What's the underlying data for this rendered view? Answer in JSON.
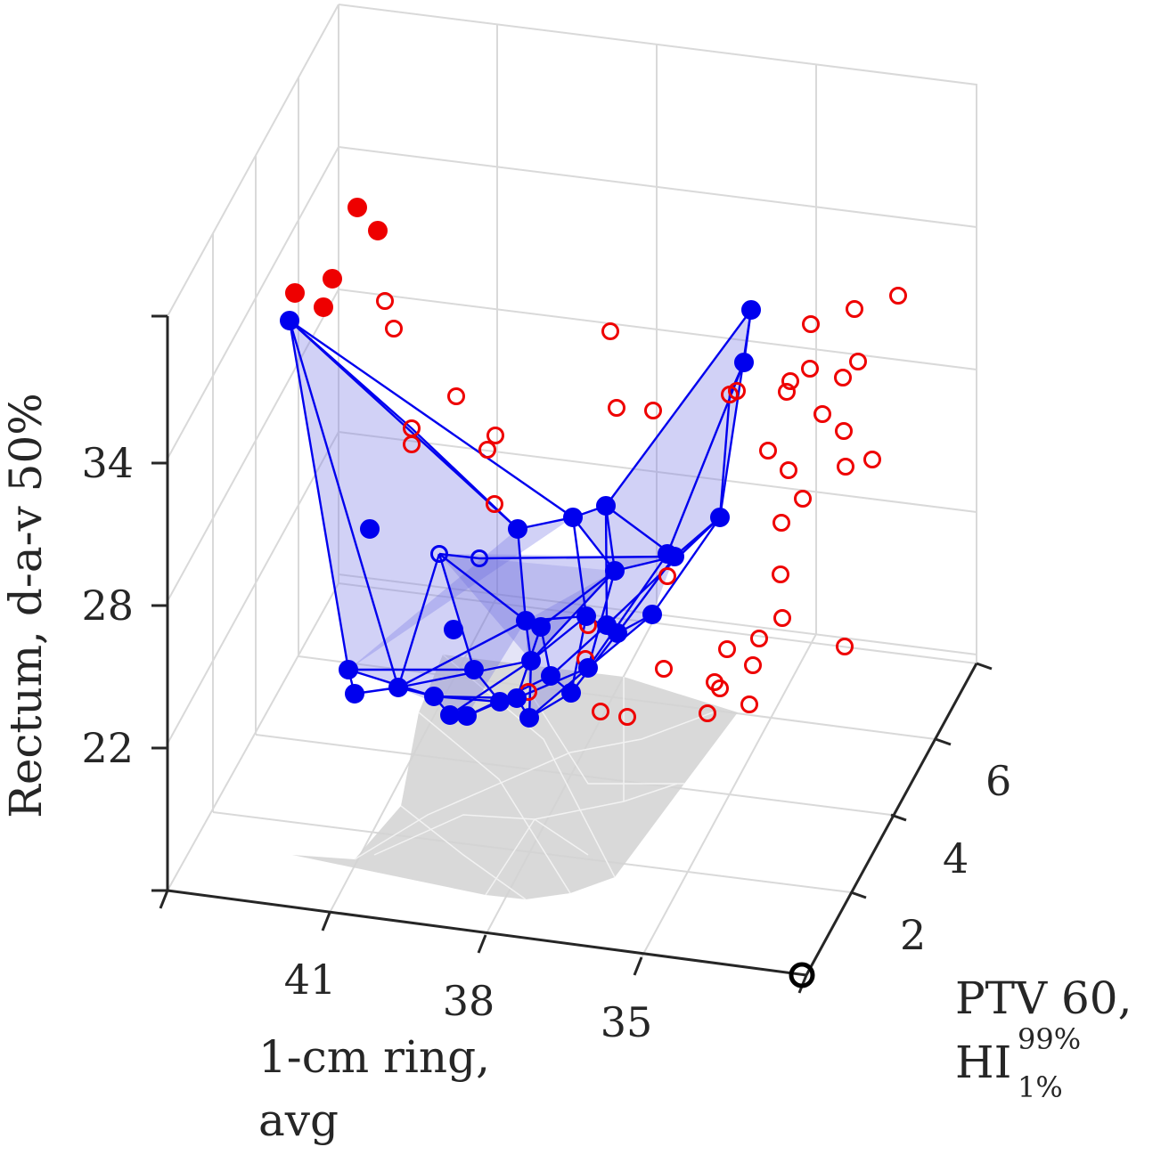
{
  "chart_data": {
    "type": "scatter",
    "view": "3d",
    "axes": {
      "x": {
        "label_lines": [
          "1-cm ring,",
          "avg"
        ],
        "ticks": [
          "41",
          "38",
          "35"
        ]
      },
      "y": {
        "label_line1": "PTV 60,",
        "label_base": "HI",
        "label_sub": "1%",
        "label_sup": "99%",
        "ticks": [
          "2",
          "4",
          "6"
        ]
      },
      "z": {
        "label": "Rectum, d-a-v 50%",
        "ticks": [
          "34",
          "28",
          "22"
        ]
      }
    },
    "colors": {
      "hull_edge": "#0000ee",
      "hull_fill": "#7a7ae6",
      "pareto_point": "#0000ee",
      "dominated_point": "#ee0000",
      "shadow": "#c8c8c8",
      "grid": "#d9d9d9",
      "axis": "#262626",
      "reference_marker": "#000000"
    },
    "series": [
      {
        "marker": "filled",
        "color": "blue",
        "points": [
          [
            325,
            360
          ],
          [
            843,
            348
          ],
          [
            835,
            407
          ],
          [
            808,
            581
          ],
          [
            757,
            625
          ],
          [
            749,
            622
          ],
          [
            732,
            690
          ],
          [
            690,
            641
          ],
          [
            680,
            568
          ],
          [
            643,
            581
          ],
          [
            581,
            594
          ],
          [
            590,
            697
          ],
          [
            607,
            704
          ],
          [
            658,
            692
          ],
          [
            681,
            702
          ],
          [
            693,
            711
          ],
          [
            596,
            742
          ],
          [
            660,
            750
          ],
          [
            618,
            759
          ],
          [
            641,
            778
          ],
          [
            580,
            784
          ],
          [
            594,
            806
          ],
          [
            561,
            788
          ],
          [
            532,
            752
          ],
          [
            509,
            707
          ],
          [
            415,
            594
          ],
          [
            391,
            752
          ],
          [
            398,
            779
          ],
          [
            447,
            772
          ],
          [
            487,
            782
          ],
          [
            505,
            803
          ],
          [
            524,
            804
          ]
        ]
      },
      {
        "marker": "open",
        "color": "blue",
        "points": [
          [
            493,
            622
          ],
          [
            538,
            627
          ]
        ]
      },
      {
        "marker": "filled",
        "color": "red",
        "points": [
          [
            401,
            233
          ],
          [
            424,
            259
          ],
          [
            373,
            313
          ],
          [
            331,
            329
          ],
          [
            363,
            345
          ]
        ]
      },
      {
        "marker": "open",
        "color": "red",
        "points": [
          [
            432,
            338
          ],
          [
            442,
            369
          ],
          [
            512,
            445
          ],
          [
            462,
            481
          ],
          [
            462,
            499
          ],
          [
            556,
            489
          ],
          [
            547,
            505
          ],
          [
            555,
            566
          ],
          [
            685,
            372
          ],
          [
            692,
            458
          ],
          [
            733,
            461
          ],
          [
            1008,
            332
          ],
          [
            959,
            347
          ],
          [
            910,
            364
          ],
          [
            963,
            406
          ],
          [
            909,
            414
          ],
          [
            887,
            428
          ],
          [
            883,
            440
          ],
          [
            946,
            424
          ],
          [
            827,
            439
          ],
          [
            819,
            443
          ],
          [
            923,
            465
          ],
          [
            947,
            484
          ],
          [
            979,
            516
          ],
          [
            862,
            506
          ],
          [
            885,
            528
          ],
          [
            949,
            524
          ],
          [
            901,
            560
          ],
          [
            877,
            587
          ],
          [
            876,
            645
          ],
          [
            878,
            694
          ],
          [
            852,
            717
          ],
          [
            948,
            726
          ],
          [
            816,
            729
          ],
          [
            845,
            747
          ],
          [
            745,
            751
          ],
          [
            802,
            766
          ],
          [
            808,
            773
          ],
          [
            841,
            791
          ],
          [
            794,
            801
          ],
          [
            704,
            805
          ],
          [
            674,
            799
          ],
          [
            657,
            740
          ],
          [
            660,
            702
          ],
          [
            749,
            647
          ],
          [
            593,
            777
          ]
        ]
      }
    ],
    "reference_marker": {
      "symbol": "ring",
      "color": "black"
    }
  }
}
